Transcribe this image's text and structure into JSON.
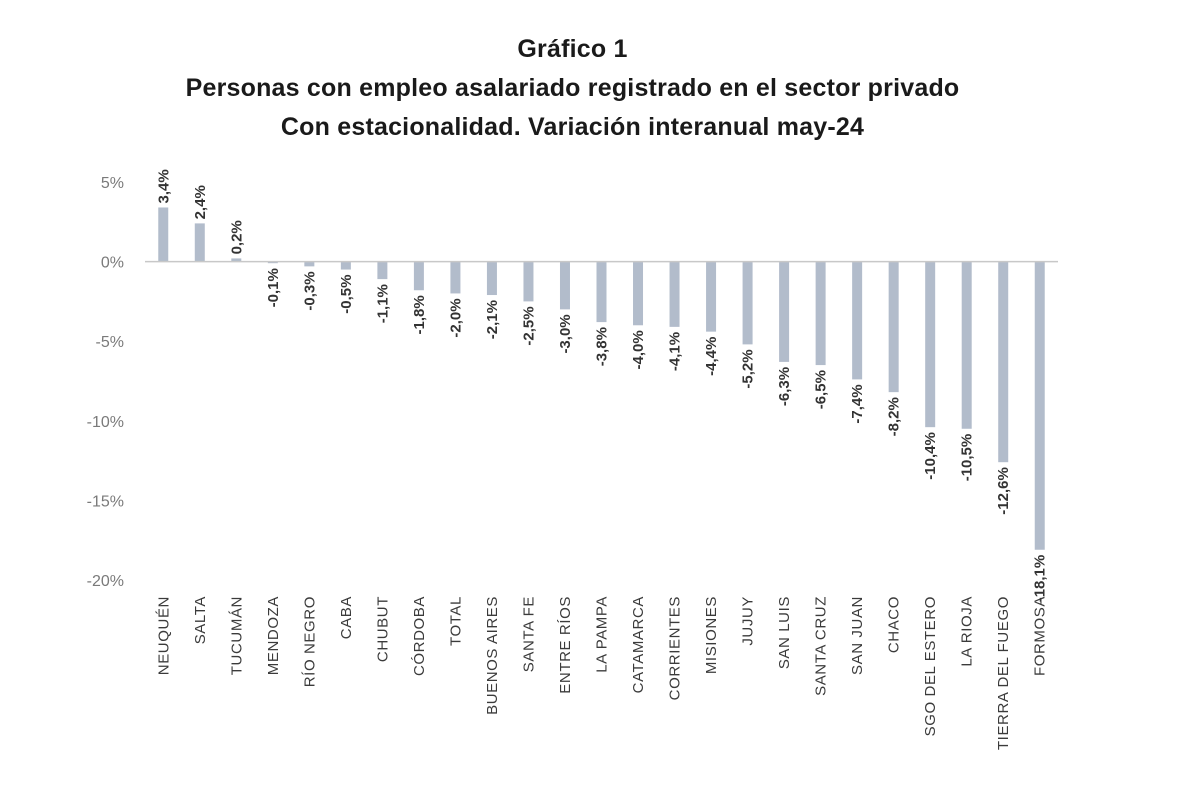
{
  "chart_data": {
    "type": "bar",
    "title": "Gráfico 1",
    "subtitle_1": "Personas con empleo asalariado registrado en el sector privado",
    "subtitle_2": "Con estacionalidad. Variación interanual may-24",
    "xlabel": "",
    "ylabel": "",
    "ylim": [
      -20,
      5
    ],
    "yticks": [
      5,
      0,
      -5,
      -10,
      -15,
      -20
    ],
    "ytick_labels": [
      "5%",
      "0%",
      "-5%",
      "-10%",
      "-15%",
      "-20%"
    ],
    "grid": false,
    "bar_color": "#b2bccb",
    "axis_color": "#c8c8c8",
    "categories": [
      "NEUQUÉN",
      "SALTA",
      "TUCUMÁN",
      "MENDOZA",
      "RÍO NEGRO",
      "CABA",
      "CHUBUT",
      "CÓRDOBA",
      "TOTAL",
      "BUENOS AIRES",
      "SANTA FE",
      "ENTRE RÍOS",
      "LA PAMPA",
      "CATAMARCA",
      "CORRIENTES",
      "MISIONES",
      "JUJUY",
      "SAN LUIS",
      "SANTA CRUZ",
      "SAN JUAN",
      "CHACO",
      "SGO DEL ESTERO",
      "LA RIOJA",
      "TIERRA DEL FUEGO",
      "FORMOSA"
    ],
    "values": [
      3.4,
      2.4,
      0.2,
      -0.1,
      -0.3,
      -0.5,
      -1.1,
      -1.8,
      -2.0,
      -2.1,
      -2.5,
      -3.0,
      -3.8,
      -4.0,
      -4.1,
      -4.4,
      -5.2,
      -6.3,
      -6.5,
      -7.4,
      -8.2,
      -10.4,
      -10.5,
      -12.6,
      -18.1
    ],
    "data_labels": [
      "3,4%",
      "2,4%",
      "0,2%",
      "-0,1%",
      "-0,3%",
      "-0,5%",
      "-1,1%",
      "-1,8%",
      "-2,0%",
      "-2,1%",
      "-2,5%",
      "-3,0%",
      "-3,8%",
      "-4,0%",
      "-4,1%",
      "-4,4%",
      "-5,2%",
      "-6,3%",
      "-6,5%",
      "-7,4%",
      "-8,2%",
      "-10,4%",
      "-10,5%",
      "-12,6%",
      "-18,1%"
    ]
  }
}
